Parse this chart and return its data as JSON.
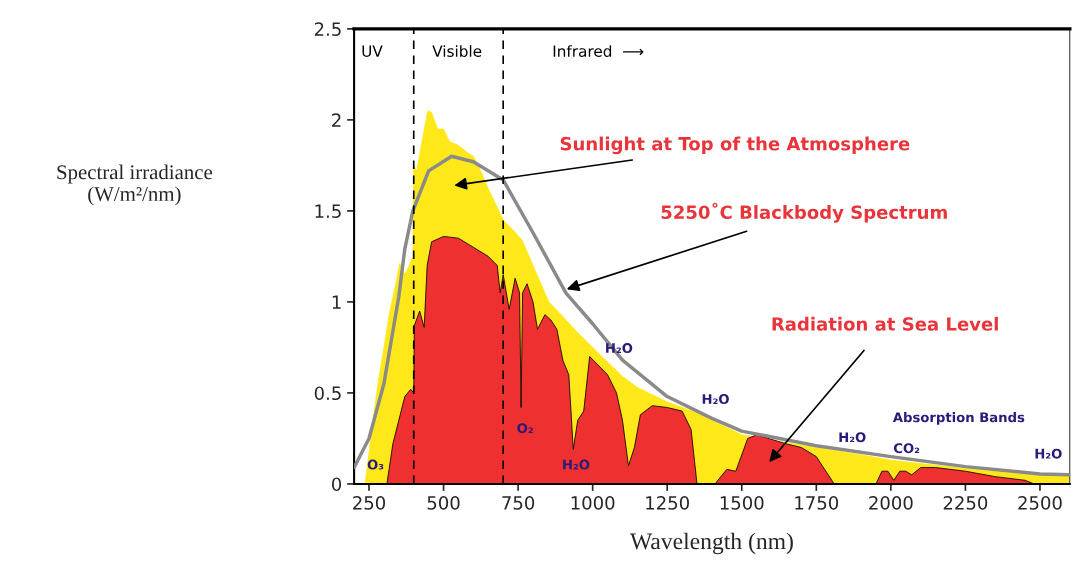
{
  "chart_data": {
    "type": "area",
    "xlabel": "Wavelength (nm)",
    "ylabel": "Spectral irradiance\n(W/m²/nm)",
    "xlim": [
      200,
      2600
    ],
    "xticks": [
      250,
      500,
      750,
      1000,
      1250,
      1500,
      1750,
      2000,
      2250,
      2500
    ],
    "ylim": [
      0,
      2.5
    ],
    "yticks": [
      0,
      0.5,
      1,
      1.5,
      2,
      2.5
    ],
    "grid": false,
    "series": [
      {
        "color": "#ffe81a",
        "x": [
          237,
          260,
          280,
          300,
          320,
          340,
          353,
          370,
          385,
          397,
          400,
          410,
          430,
          447,
          460,
          480,
          500,
          520,
          550,
          580,
          600,
          630,
          650,
          680,
          700,
          730,
          763,
          800,
          853,
          900,
          950,
          1000,
          1050,
          1100,
          1150,
          1250,
          1350,
          1400,
          1500,
          1600,
          1750,
          1900,
          2000,
          2250,
          2500,
          2600
        ],
        "values": [
          0,
          0.3,
          0.55,
          0.75,
          0.95,
          1.1,
          1.21,
          1.15,
          1.2,
          1.25,
          1.75,
          1.72,
          1.9,
          2.05,
          2.04,
          1.95,
          1.95,
          1.88,
          1.86,
          1.82,
          1.8,
          1.7,
          1.62,
          1.52,
          1.45,
          1.4,
          1.34,
          1.2,
          1.0,
          0.92,
          0.83,
          0.75,
          0.67,
          0.59,
          0.53,
          0.45,
          0.39,
          0.35,
          0.27,
          0.24,
          0.2,
          0.16,
          0.13,
          0.085,
          0.05,
          0.045
        ]
      },
      {
        "color": "#ee3030",
        "x": [
          310,
          330,
          350,
          370,
          390,
          400,
          402,
          420,
          435,
          445,
          460,
          500,
          550,
          600,
          650,
          680,
          690,
          700,
          720,
          740,
          755,
          760,
          765,
          780,
          800,
          815,
          840,
          860,
          880,
          900,
          920,
          935,
          950,
          970,
          990,
          1050,
          1080,
          1100,
          1120,
          1140,
          1160,
          1200,
          1250,
          1300,
          1330,
          1350,
          1410,
          1450,
          1480,
          1520,
          1550,
          1650,
          1700,
          1750,
          1790,
          1810,
          1950,
          1970,
          1990,
          2010,
          2030,
          2050,
          2070,
          2100,
          2150,
          2250,
          2350,
          2450,
          2480
        ],
        "values": [
          0,
          0.22,
          0.35,
          0.48,
          0.52,
          0.5,
          0.87,
          0.95,
          0.86,
          1.2,
          1.33,
          1.36,
          1.35,
          1.3,
          1.25,
          1.2,
          1.05,
          1.15,
          0.96,
          1.13,
          1.05,
          0.42,
          1.05,
          1.1,
          1.0,
          0.85,
          0.93,
          0.9,
          0.85,
          0.68,
          0.6,
          0.19,
          0.35,
          0.4,
          0.7,
          0.6,
          0.5,
          0.35,
          0.1,
          0.2,
          0.38,
          0.43,
          0.42,
          0.4,
          0.3,
          0,
          0,
          0.08,
          0.07,
          0.25,
          0.27,
          0.22,
          0.2,
          0.15,
          0.05,
          0,
          0,
          0.07,
          0.07,
          0.02,
          0.07,
          0.07,
          0.05,
          0.09,
          0.09,
          0.07,
          0.04,
          0.02,
          0
        ]
      },
      {
        "type": "line",
        "color": "#8a8a8a",
        "x": [
          200,
          250,
          300,
          350,
          370,
          397,
          450,
          527,
          600,
          700,
          800,
          910,
          1000,
          1100,
          1250,
          1400,
          1500,
          1750,
          2000,
          2250,
          2500,
          2600
        ],
        "values": [
          0.09,
          0.25,
          0.55,
          1.03,
          1.29,
          1.5,
          1.72,
          1.8,
          1.77,
          1.67,
          1.38,
          1.05,
          0.88,
          0.68,
          0.48,
          0.36,
          0.29,
          0.21,
          0.15,
          0.095,
          0.055,
          0.05
        ]
      }
    ],
    "ref_lines": [
      {
        "axis": "x",
        "value": 400,
        "color": "#000000",
        "line_style": "dashed"
      },
      {
        "axis": "x",
        "value": 700,
        "color": "#000000",
        "line_style": "dashed"
      }
    ],
    "annotations": [
      "UV",
      "Visible",
      "Infrared  ⟶",
      "Sunlight at Top of the Atmosphere",
      {
        "text": "5250˚C Blackbody Spectrum",
        "x": 913,
        "y": 1.07
      },
      "Radiation at Sea Level",
      "O₃",
      "O₂",
      "H₂O",
      "H₂O",
      "H₂O",
      "H₂O",
      "CO₂",
      "Absorption Bands",
      "H₂O"
    ]
  }
}
